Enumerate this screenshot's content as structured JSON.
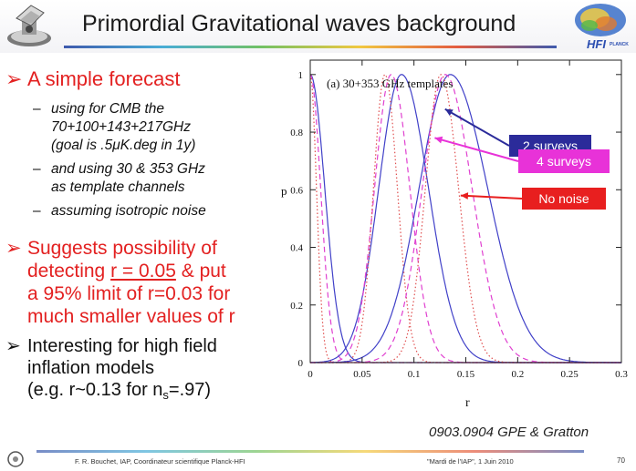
{
  "slide": {
    "title": "Primordial Gravitational waves background",
    "logo_text": "HFI",
    "logo_sub": "PLANCK",
    "bullets": [
      {
        "text": "A simple forecast",
        "subs": [
          [
            "using for CMB the",
            "70+100+143+217GHz",
            "(goal is .5μK.deg in 1y)"
          ],
          [
            "and using 30 & 353 GHz",
            "as template channels"
          ],
          [
            "assuming isotropic noise"
          ]
        ]
      }
    ],
    "bullet2": {
      "line1": "Suggests possibility of",
      "line2_pre": "detecting ",
      "line2_u": "r = 0.05",
      "line2_post": " & put",
      "line3": "a 95% limit of r=0.03 for",
      "line4": "much smaller values of r"
    },
    "bullet3": {
      "line1": "Interesting for high field",
      "line2": "inflation models",
      "line3_pre": "(e.g. r~0.13  for n",
      "line3_sub": "s",
      "line3_post": "=.97)"
    },
    "reference": "0903.0904 GPE & Gratton",
    "footer_left": "F. R. Bouchet, IAP, Coordinateur scientifique Planck-HFI",
    "footer_mid": "\"Mardi de l'IAP\", 1 Juin 2010",
    "page_number": "70",
    "bullet_arrow": "➢"
  },
  "chart_data": {
    "type": "line",
    "title": "(a) 30+353 GHz templates",
    "xlabel": "r",
    "ylabel": "p",
    "xlim": [
      0,
      0.3
    ],
    "ylim": [
      0,
      1.05
    ],
    "xticks": [
      0,
      0.05,
      0.1,
      0.15,
      0.2,
      0.25,
      0.3
    ],
    "xtick_labels": [
      "0",
      "0.05",
      "0.1",
      "0.15",
      "0.2",
      "0.25",
      "0.3"
    ],
    "yticks": [
      0,
      0.2,
      0.4,
      0.6,
      0.8,
      1
    ],
    "ytick_labels": [
      "0",
      "0.2",
      "0.4",
      "0.6",
      "0.8",
      "1"
    ],
    "grid": false,
    "annotations": [
      {
        "text": "2 surveys",
        "bg": "#2b2b9a",
        "fg": "#ffffff",
        "arrow_to": [
          0.13,
          0.88
        ]
      },
      {
        "text": "4 surveys",
        "bg": "#e832d8",
        "fg": "#ffffff",
        "arrow_to": [
          0.12,
          0.78
        ]
      },
      {
        "text": "No noise",
        "bg": "#e81f1f",
        "fg": "#ffffff",
        "arrow_to": [
          0.145,
          0.58
        ]
      }
    ],
    "series": [
      {
        "style": "solid",
        "color": "#4040c8",
        "peak": 0.0,
        "width_left": 0.0,
        "width_right": 0.014
      },
      {
        "style": "dashed",
        "color": "#e040d0",
        "peak": 0.0,
        "width_left": 0.0,
        "width_right": 0.01
      },
      {
        "style": "dotted",
        "color": "#e05050",
        "peak": 0.0,
        "width_left": 0.0,
        "width_right": 0.006
      },
      {
        "style": "solid",
        "color": "#4040c8",
        "peak": 0.088,
        "width_left": 0.022,
        "width_right": 0.026
      },
      {
        "style": "dashed",
        "color": "#e040d0",
        "peak": 0.078,
        "width_left": 0.016,
        "width_right": 0.018
      },
      {
        "style": "dotted",
        "color": "#e05050",
        "peak": 0.072,
        "width_left": 0.011,
        "width_right": 0.012
      },
      {
        "style": "solid",
        "color": "#4040c8",
        "peak": 0.135,
        "width_left": 0.03,
        "width_right": 0.036
      },
      {
        "style": "dashed",
        "color": "#e040d0",
        "peak": 0.13,
        "width_left": 0.022,
        "width_right": 0.026
      },
      {
        "style": "dotted",
        "color": "#e05050",
        "peak": 0.126,
        "width_left": 0.015,
        "width_right": 0.017
      }
    ]
  },
  "colors": {
    "accent_red": "#e32121",
    "title_text": "#1a1a1a"
  }
}
